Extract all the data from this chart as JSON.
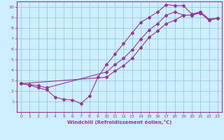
{
  "xlabel": "Windchill (Refroidissement éolien,°C)",
  "xlim": [
    -0.5,
    23.5
  ],
  "ylim": [
    0,
    10.5
  ],
  "xticks": [
    0,
    1,
    2,
    3,
    4,
    5,
    6,
    7,
    8,
    9,
    10,
    11,
    12,
    13,
    14,
    15,
    16,
    17,
    18,
    19,
    20,
    21,
    22,
    23
  ],
  "yticks": [
    1,
    2,
    3,
    4,
    5,
    6,
    7,
    8,
    9,
    10
  ],
  "bg_color": "#cceeff",
  "line_color": "#993399",
  "grid_color": "#99cccc",
  "line1_x": [
    0,
    1,
    2,
    3,
    4,
    5,
    6,
    7,
    8,
    9,
    10,
    11,
    12,
    13,
    14,
    15,
    16,
    17,
    18,
    19,
    20,
    21,
    22,
    23
  ],
  "line1_y": [
    2.7,
    2.55,
    2.3,
    2.1,
    1.4,
    1.2,
    1.15,
    0.8,
    1.5,
    3.3,
    4.5,
    5.5,
    6.5,
    7.5,
    8.5,
    9.0,
    9.5,
    10.2,
    10.1,
    10.1,
    9.3,
    9.5,
    8.8,
    8.9
  ],
  "line2_x": [
    0,
    1,
    2,
    3,
    10,
    11,
    12,
    13,
    14,
    15,
    16,
    17,
    18,
    19,
    20,
    21,
    22,
    23
  ],
  "line2_y": [
    2.7,
    2.6,
    2.5,
    2.3,
    3.8,
    4.5,
    5.1,
    5.9,
    6.9,
    7.8,
    8.4,
    9.2,
    9.5,
    9.2,
    9.2,
    9.5,
    8.8,
    8.9
  ],
  "line3_x": [
    0,
    10,
    11,
    12,
    13,
    14,
    15,
    16,
    17,
    18,
    19,
    20,
    21,
    22,
    23
  ],
  "line3_y": [
    2.7,
    3.3,
    3.9,
    4.4,
    5.1,
    6.1,
    7.1,
    7.7,
    8.4,
    8.7,
    9.2,
    9.2,
    9.4,
    8.7,
    8.9
  ]
}
